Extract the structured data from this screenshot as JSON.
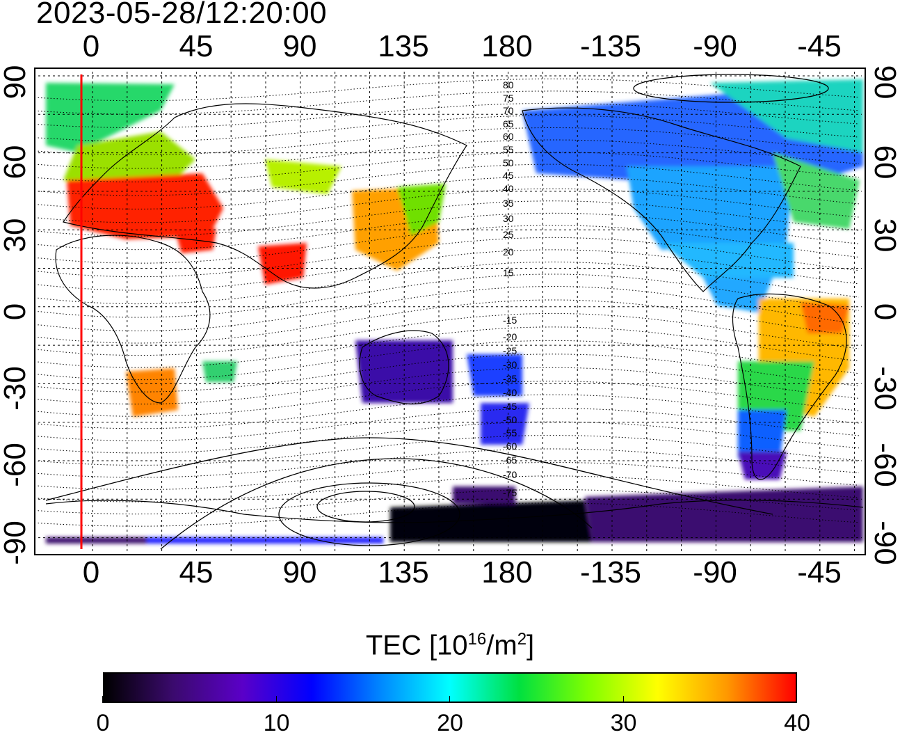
{
  "title": "2023-05-28/12:20:00",
  "lon_ticks_top": [
    "0",
    "45",
    "90",
    "135",
    "180",
    "-135",
    "-90",
    "-45"
  ],
  "lon_ticks_bottom": [
    "0",
    "45",
    "90",
    "135",
    "180",
    "-135",
    "-90",
    "-45"
  ],
  "lat_ticks_left": [
    "90",
    "60",
    "30",
    "0",
    "-30",
    "-60",
    "-90"
  ],
  "lat_ticks_right": [
    "90",
    "60",
    "30",
    "0",
    "-30",
    "-60",
    "-90"
  ],
  "contour_labels": [
    "80",
    "75",
    "70",
    "65",
    "60",
    "55",
    "50",
    "45",
    "40",
    "35",
    "30",
    "25",
    "20",
    "15",
    "-15",
    "-20",
    "-25",
    "-30",
    "-35",
    "-40",
    "-45",
    "-50",
    "-55",
    "-60",
    "-65",
    "-70",
    "-75"
  ],
  "colorbar": {
    "title_main": "TEC  [10",
    "title_sup1": "16",
    "title_mid": "/m",
    "title_sup2": "2",
    "title_end": "]",
    "ticks": [
      "0",
      "10",
      "20",
      "30",
      "40"
    ],
    "range": [
      0,
      40
    ]
  },
  "colors": {
    "terminator": "#ff0000",
    "scale": [
      "#000000",
      "#3b0a6e",
      "#5a00c8",
      "#0000ff",
      "#0088ff",
      "#00ffff",
      "#00e040",
      "#80ff00",
      "#ffff00",
      "#ff9900",
      "#ff0000"
    ]
  }
}
